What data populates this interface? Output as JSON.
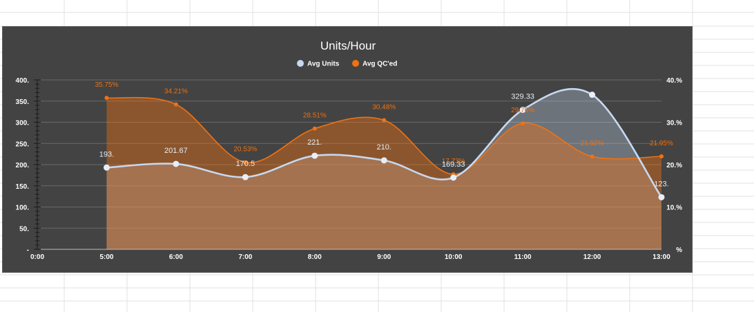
{
  "chart_data": {
    "type": "area",
    "title": "Units/Hour",
    "legend_position": "top",
    "x_labels": [
      "0:00",
      "5:00",
      "6:00",
      "7:00",
      "8:00",
      "9:00",
      "10:00",
      "11:00",
      "12:00",
      "13:00"
    ],
    "series": [
      {
        "name": "Avg Units",
        "axis": "left",
        "color": "#c6d9f1",
        "x": [
          "5:00",
          "6:00",
          "7:00",
          "8:00",
          "9:00",
          "10:00",
          "11:00",
          "12:00",
          "13:00"
        ],
        "values": [
          193,
          201.67,
          170.5,
          221,
          210,
          169.33,
          329.33,
          365,
          123
        ],
        "data_labels": [
          "193.",
          "201.67",
          "170.5",
          "221.",
          "210.",
          "169.33",
          "329.33",
          "",
          "123."
        ]
      },
      {
        "name": "Avg QC'ed",
        "axis": "right",
        "color": "#f07213",
        "x": [
          "5:00",
          "6:00",
          "7:00",
          "8:00",
          "9:00",
          "10:00",
          "11:00",
          "12:00",
          "13:00"
        ],
        "values": [
          35.75,
          34.21,
          20.53,
          28.51,
          30.48,
          17.73,
          29.76,
          21.92,
          21.95
        ],
        "data_labels": [
          "35.75%",
          "34.21%",
          "20.53%",
          "28.51%",
          "30.48%",
          "17.73%",
          "29.76%",
          "21.92%",
          "21.95%"
        ]
      }
    ],
    "y_left": {
      "range": [
        0,
        400
      ],
      "ticks": [
        0,
        50,
        100,
        150,
        200,
        250,
        300,
        350,
        400
      ],
      "tick_labels": [
        "-",
        "50.",
        "100.",
        "150.",
        "200.",
        "250.",
        "300.",
        "350.",
        "400."
      ]
    },
    "y_right": {
      "range": [
        0,
        40
      ],
      "ticks": [
        0,
        10,
        20,
        30,
        40
      ],
      "tick_labels": [
        "%",
        "10.%",
        "20.%",
        "30.%",
        "40.%"
      ]
    },
    "grid": true
  }
}
